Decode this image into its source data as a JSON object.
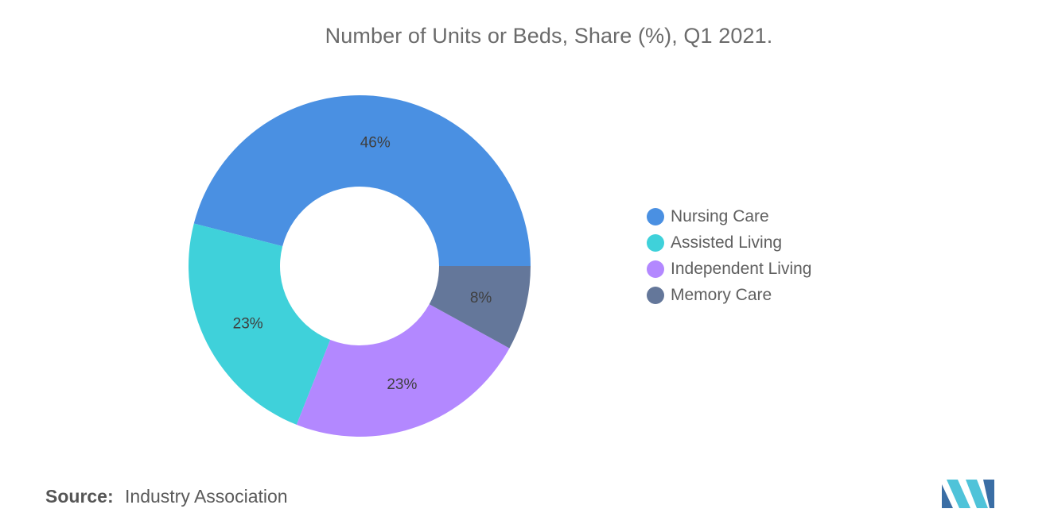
{
  "chart_data": {
    "type": "pie",
    "title": "Number of Units or Beds, Share (%), Q1 2021.",
    "donut": true,
    "categories": [
      "Nursing Care",
      "Assisted Living",
      "Independent Living",
      "Memory Care"
    ],
    "values": [
      46,
      23,
      23,
      8
    ],
    "data_labels": [
      "46%",
      "23%",
      "23%",
      "8%"
    ],
    "colors": [
      "#4a90e2",
      "#3fd1da",
      "#b388ff",
      "#64779a"
    ],
    "legend_position": "right"
  },
  "source": {
    "label": "Source:",
    "value": "Industry Association"
  },
  "logo": {
    "icon": "mordor-intelligence-logo",
    "colors": [
      "#3a6ea5",
      "#4fc3d9"
    ]
  }
}
